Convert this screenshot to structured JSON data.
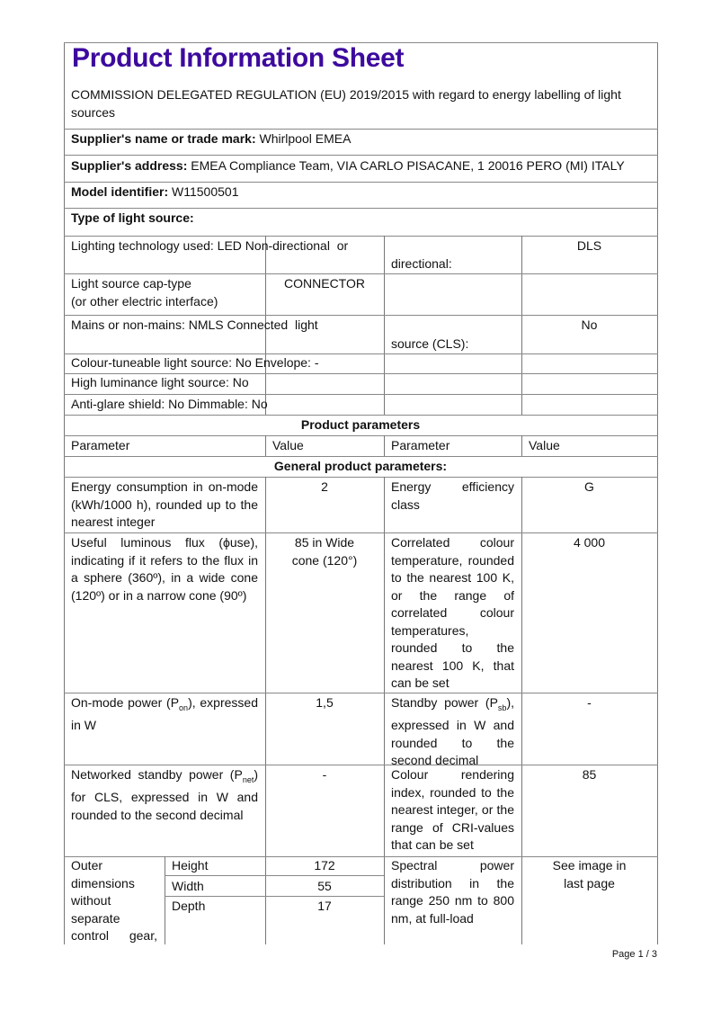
{
  "title": "Product Information Sheet",
  "regulation": "COMMISSION DELEGATED REGULATION (EU) 2019/2015 with regard to energy labelling of light sources",
  "supplier_name": {
    "label": "Supplier's name or trade mark:",
    "value": "Whirlpool EMEA"
  },
  "supplier_address": {
    "label": "Supplier's address:",
    "value": "EMEA Compliance Team, VIA CARLO PISACANE, 1 20016 PERO (MI) ITALY"
  },
  "model": {
    "label": "Model identifier:",
    "value": "W11500501"
  },
  "type_heading": "Type of light source:",
  "type_rows": [
    {
      "a": "Lighting technology used: LED Non-directional  or",
      "c": "directional:",
      "d": "DLS"
    },
    {
      "a": "Light source cap-type",
      "a2": "(or other electric interface)",
      "b": "CONNECTOR"
    },
    {
      "a": "Mains or non-mains: NMLS Connected  light",
      "c": "source (CLS):",
      "d": "No"
    },
    {
      "a": "Colour-tuneable light source: No Envelope: -"
    },
    {
      "a": "High luminance light source: No"
    },
    {
      "a": "Anti-glare shield: No Dimmable: No"
    }
  ],
  "product_parameters": "Product parameters",
  "headers": [
    "Parameter",
    "Value",
    "Parameter",
    "Value"
  ],
  "general": "General product parameters:",
  "params": [
    {
      "p1": "Energy consumption in on-mode (kWh/1000 h), rounded up to the nearest integer",
      "v1": "2",
      "p2": "Energy efficiency class",
      "v2": "G"
    },
    {
      "p1": "Useful luminous flux (ϕuse), indicating if it refers to the flux in a sphere (360º), in a wide cone (120º) or in a narrow cone (90º)",
      "v1": "85 in Wide cone (120°)",
      "p2": "Correlated colour temperature, rounded to the nearest 100 K, or the range of correlated colour temperatures, rounded to the nearest 100 K, that can be set",
      "v2": "4 000"
    },
    {
      "p1a": "On-mode power (P",
      "p1sub": "on",
      "p1b": "), expressed in W",
      "v1": "1,5",
      "p2a": "Standby power (P",
      "p2sub": "sb",
      "p2b": "), expressed in W and rounded to the second decimal",
      "v2": "-"
    },
    {
      "p1a": "Networked standby power (P",
      "p1sub": "net",
      "p1b": ") for CLS, expressed in W and rounded to the second decimal",
      "v1": "-",
      "p2": "Colour rendering index, rounded to the nearest integer, or the range of CRI-values that can be set",
      "v2": "85"
    },
    {
      "p1": "Outer dimensions without separate control gear, lighting control",
      "dims": [
        {
          "label": "Height",
          "value": "172"
        },
        {
          "label": "Width",
          "value": "55"
        },
        {
          "label": "Depth",
          "value": "17"
        }
      ],
      "p2": "Spectral power distribution in the range 250 nm to 800 nm, at full-load",
      "v2": "See image in last page"
    }
  ],
  "page": "Page 1 / 3"
}
